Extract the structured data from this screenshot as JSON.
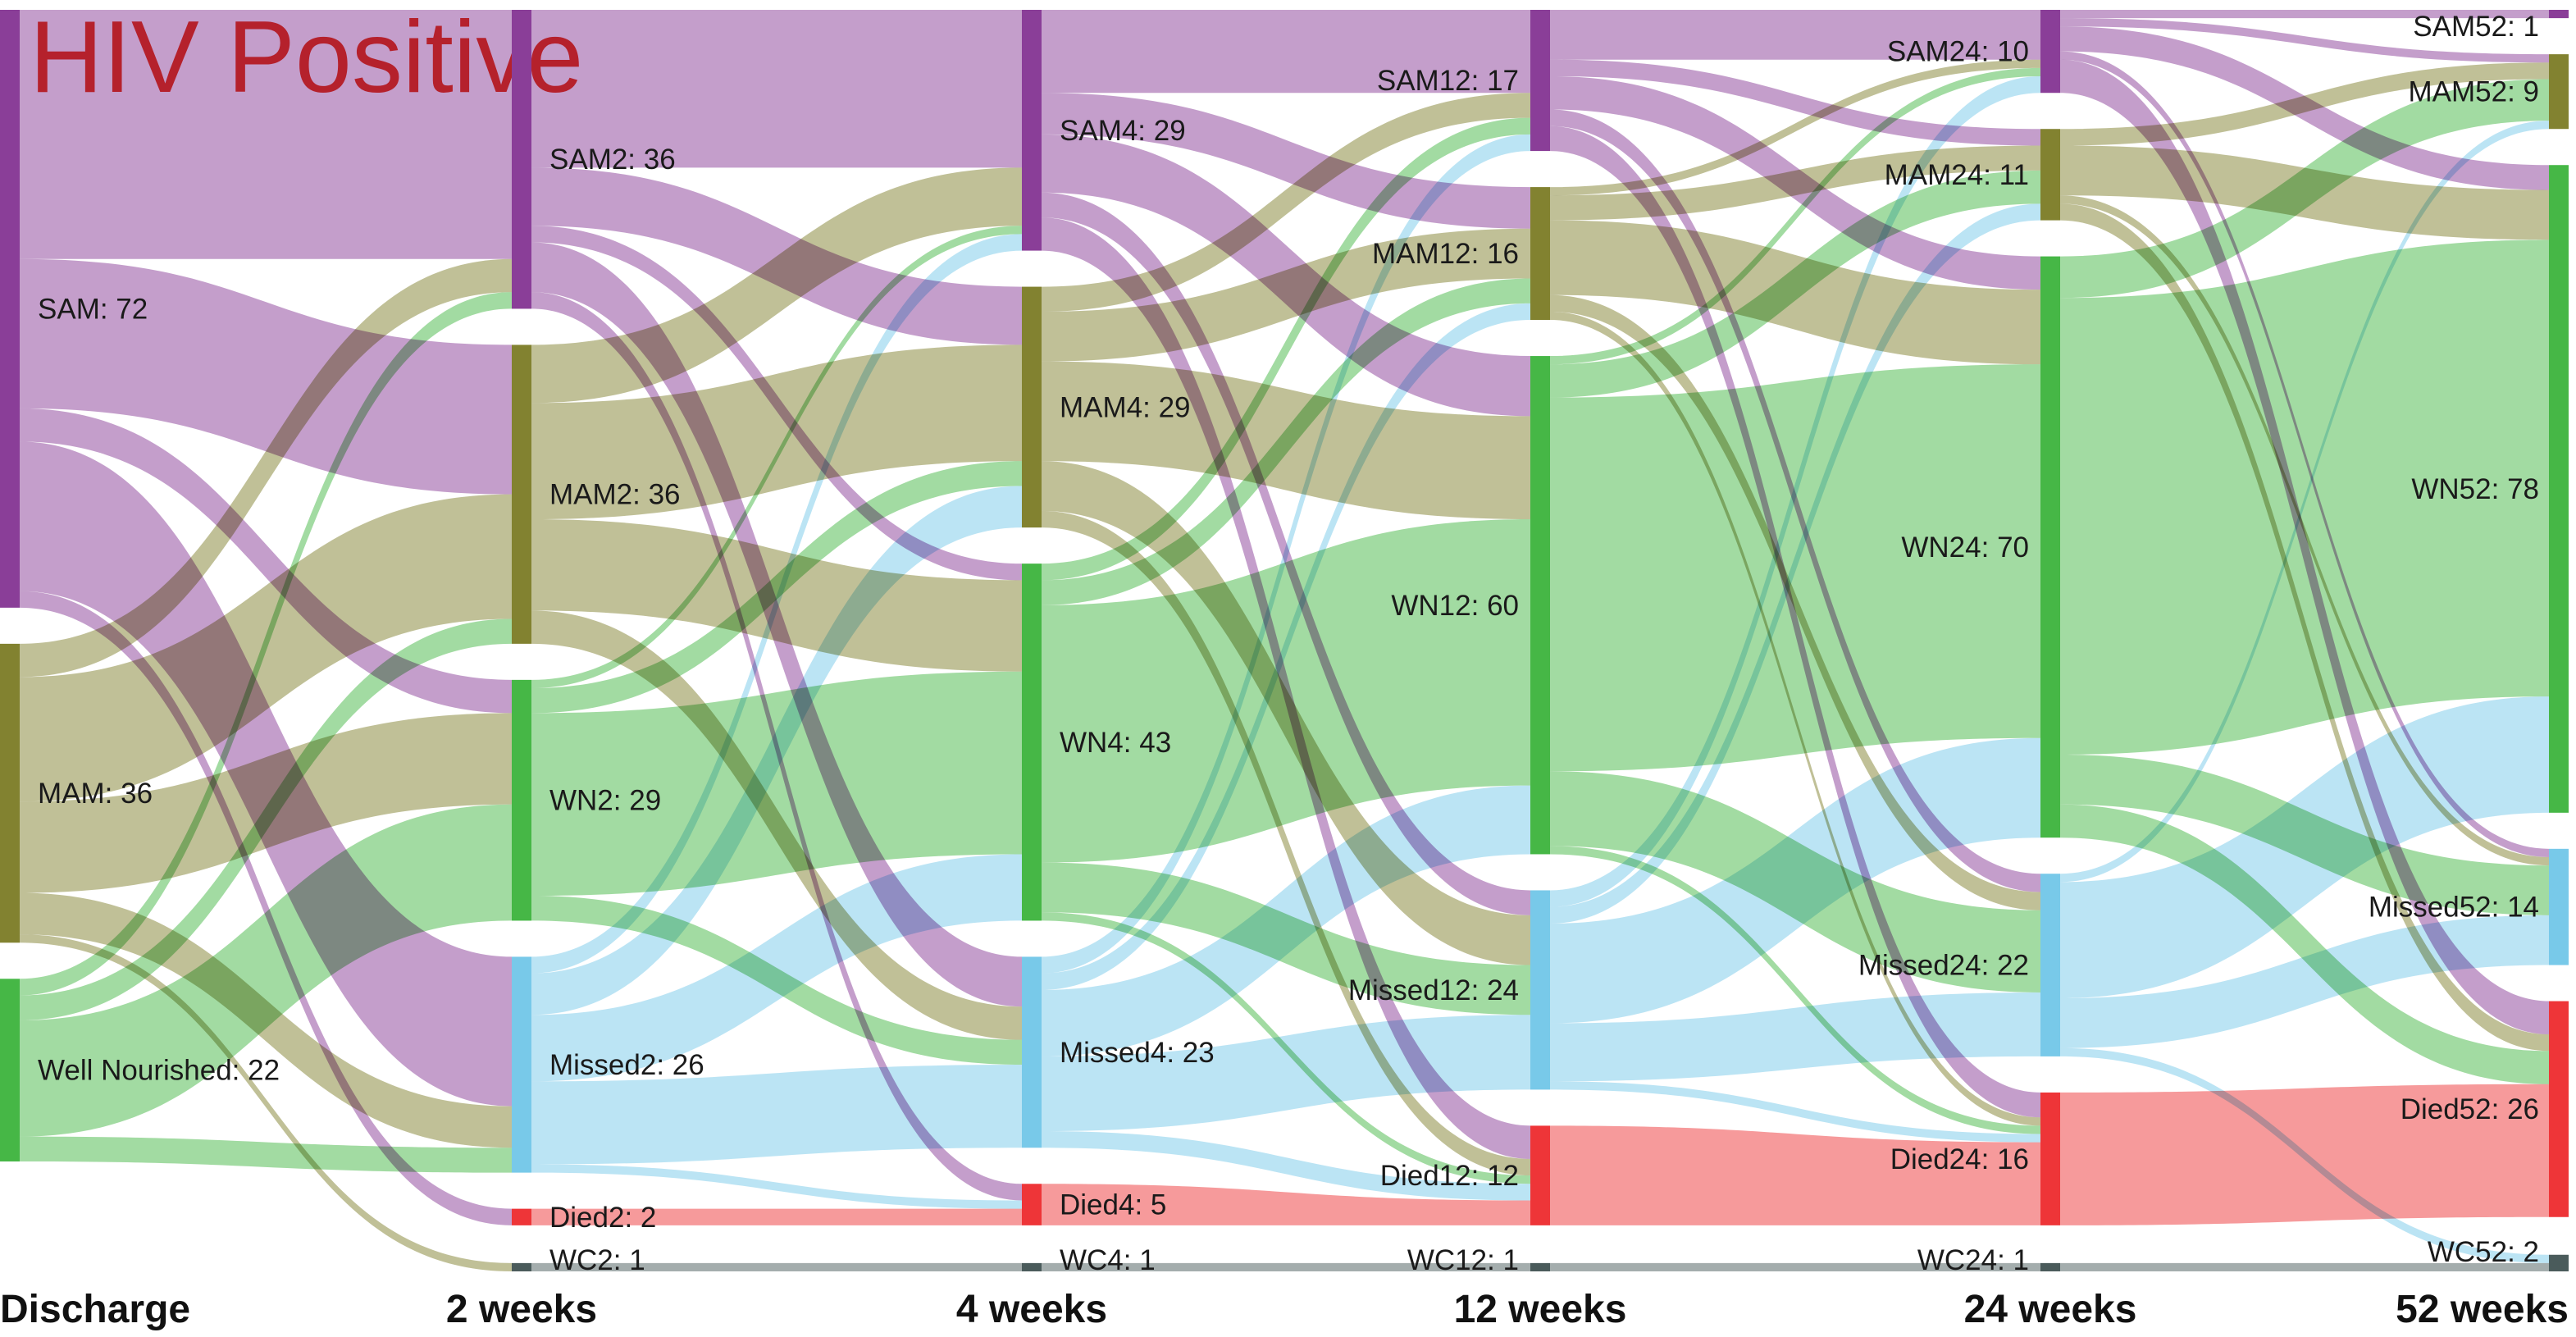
{
  "title": "HIV Positive",
  "colors": {
    "SAM": "#8a3e98",
    "MAM": "#828230",
    "WN": "#46b746",
    "Missed": "#78c9e9",
    "Died": "#ee3538",
    "WC": "#4a5b5b",
    "title": "#ec3437"
  },
  "columns": [
    {
      "label": "Discharge",
      "nodes": [
        {
          "id": "SAM0",
          "cat": "SAM",
          "label": "SAM: 72"
        },
        {
          "id": "MAM0",
          "cat": "MAM",
          "label": "MAM: 36"
        },
        {
          "id": "WN0",
          "cat": "WN",
          "label": "Well Nourished: 22"
        }
      ]
    },
    {
      "label": "2 weeks",
      "nodes": [
        {
          "id": "SAM2",
          "cat": "SAM",
          "label": "SAM2: 36"
        },
        {
          "id": "MAM2",
          "cat": "MAM",
          "label": "MAM2: 36"
        },
        {
          "id": "WN2",
          "cat": "WN",
          "label": "WN2: 29"
        },
        {
          "id": "Missed2",
          "cat": "Missed",
          "label": "Missed2: 26"
        },
        {
          "id": "Died2",
          "cat": "Died",
          "label": "Died2: 2"
        },
        {
          "id": "WC2",
          "cat": "WC",
          "label": "WC2: 1"
        }
      ]
    },
    {
      "label": "4 weeks",
      "nodes": [
        {
          "id": "SAM4",
          "cat": "SAM",
          "label": "SAM4: 29"
        },
        {
          "id": "MAM4",
          "cat": "MAM",
          "label": "MAM4: 29"
        },
        {
          "id": "WN4",
          "cat": "WN",
          "label": "WN4: 43"
        },
        {
          "id": "Missed4",
          "cat": "Missed",
          "label": "Missed4: 23"
        },
        {
          "id": "Died4",
          "cat": "Died",
          "label": "Died4: 5"
        },
        {
          "id": "WC4",
          "cat": "WC",
          "label": "WC4: 1"
        }
      ]
    },
    {
      "label": "12 weeks",
      "nodes": [
        {
          "id": "SAM12",
          "cat": "SAM",
          "label": "SAM12: 17"
        },
        {
          "id": "MAM12",
          "cat": "MAM",
          "label": "MAM12: 16"
        },
        {
          "id": "WN12",
          "cat": "WN",
          "label": "WN12: 60"
        },
        {
          "id": "Missed12",
          "cat": "Missed",
          "label": "Missed12: 24"
        },
        {
          "id": "Died12",
          "cat": "Died",
          "label": "Died12: 12"
        },
        {
          "id": "WC12",
          "cat": "WC",
          "label": "WC12: 1"
        }
      ]
    },
    {
      "label": "24 weeks",
      "nodes": [
        {
          "id": "SAM24",
          "cat": "SAM",
          "label": "SAM24: 10"
        },
        {
          "id": "MAM24",
          "cat": "MAM",
          "label": "MAM24: 11"
        },
        {
          "id": "WN24",
          "cat": "WN",
          "label": "WN24: 70"
        },
        {
          "id": "Missed24",
          "cat": "Missed",
          "label": "Missed24: 22"
        },
        {
          "id": "Died24",
          "cat": "Died",
          "label": "Died24: 16"
        },
        {
          "id": "WC24",
          "cat": "WC",
          "label": "WC24: 1"
        }
      ]
    },
    {
      "label": "52 weeks",
      "nodes": [
        {
          "id": "SAM52",
          "cat": "SAM",
          "label": "SAM52: 1"
        },
        {
          "id": "MAM52",
          "cat": "MAM",
          "label": "MAM52: 9"
        },
        {
          "id": "WN52",
          "cat": "WN",
          "label": "WN52: 78"
        },
        {
          "id": "Missed52",
          "cat": "Missed",
          "label": "Missed52: 14"
        },
        {
          "id": "Died52",
          "cat": "Died",
          "label": "Died52: 26"
        },
        {
          "id": "WC52",
          "cat": "WC",
          "label": "WC52: 2"
        }
      ]
    }
  ],
  "flows": [
    {
      "from": "SAM0",
      "to": "SAM2",
      "value": 30
    },
    {
      "from": "SAM0",
      "to": "MAM2",
      "value": 18
    },
    {
      "from": "SAM0",
      "to": "WN2",
      "value": 4
    },
    {
      "from": "SAM0",
      "to": "Missed2",
      "value": 18
    },
    {
      "from": "SAM0",
      "to": "Died2",
      "value": 2
    },
    {
      "from": "MAM0",
      "to": "SAM2",
      "value": 4
    },
    {
      "from": "MAM0",
      "to": "MAM2",
      "value": 15
    },
    {
      "from": "MAM0",
      "to": "WN2",
      "value": 11
    },
    {
      "from": "MAM0",
      "to": "Missed2",
      "value": 5
    },
    {
      "from": "MAM0",
      "to": "WC2",
      "value": 1
    },
    {
      "from": "WN0",
      "to": "SAM2",
      "value": 2
    },
    {
      "from": "WN0",
      "to": "MAM2",
      "value": 3
    },
    {
      "from": "WN0",
      "to": "WN2",
      "value": 14
    },
    {
      "from": "WN0",
      "to": "Missed2",
      "value": 3
    },
    {
      "from": "SAM2",
      "to": "SAM4",
      "value": 19
    },
    {
      "from": "SAM2",
      "to": "MAM4",
      "value": 7
    },
    {
      "from": "SAM2",
      "to": "WN4",
      "value": 2
    },
    {
      "from": "SAM2",
      "to": "Missed4",
      "value": 6
    },
    {
      "from": "SAM2",
      "to": "Died4",
      "value": 2
    },
    {
      "from": "MAM2",
      "to": "SAM4",
      "value": 7
    },
    {
      "from": "MAM2",
      "to": "MAM4",
      "value": 14
    },
    {
      "from": "MAM2",
      "to": "WN4",
      "value": 11
    },
    {
      "from": "MAM2",
      "to": "Missed4",
      "value": 4
    },
    {
      "from": "WN2",
      "to": "SAM4",
      "value": 1
    },
    {
      "from": "WN2",
      "to": "MAM4",
      "value": 3
    },
    {
      "from": "WN2",
      "to": "WN4",
      "value": 22
    },
    {
      "from": "WN2",
      "to": "Missed4",
      "value": 3
    },
    {
      "from": "Missed2",
      "to": "SAM4",
      "value": 2
    },
    {
      "from": "Missed2",
      "to": "MAM4",
      "value": 5
    },
    {
      "from": "Missed2",
      "to": "WN4",
      "value": 8
    },
    {
      "from": "Missed2",
      "to": "Missed4",
      "value": 10
    },
    {
      "from": "Missed2",
      "to": "Died4",
      "value": 1
    },
    {
      "from": "Died2",
      "to": "Died4",
      "value": 2
    },
    {
      "from": "WC2",
      "to": "WC4",
      "value": 1
    },
    {
      "from": "SAM4",
      "to": "SAM12",
      "value": 10
    },
    {
      "from": "SAM4",
      "to": "MAM12",
      "value": 5
    },
    {
      "from": "SAM4",
      "to": "WN12",
      "value": 7
    },
    {
      "from": "SAM4",
      "to": "Missed12",
      "value": 3
    },
    {
      "from": "SAM4",
      "to": "Died12",
      "value": 4
    },
    {
      "from": "MAM4",
      "to": "SAM12",
      "value": 3
    },
    {
      "from": "MAM4",
      "to": "MAM12",
      "value": 6
    },
    {
      "from": "MAM4",
      "to": "WN12",
      "value": 12
    },
    {
      "from": "MAM4",
      "to": "Missed12",
      "value": 6
    },
    {
      "from": "MAM4",
      "to": "Died12",
      "value": 2
    },
    {
      "from": "WN4",
      "to": "SAM12",
      "value": 2
    },
    {
      "from": "WN4",
      "to": "MAM12",
      "value": 3
    },
    {
      "from": "WN4",
      "to": "WN12",
      "value": 31
    },
    {
      "from": "WN4",
      "to": "Missed12",
      "value": 6
    },
    {
      "from": "WN4",
      "to": "Died12",
      "value": 1
    },
    {
      "from": "Missed4",
      "to": "SAM12",
      "value": 2
    },
    {
      "from": "Missed4",
      "to": "MAM12",
      "value": 2
    },
    {
      "from": "Missed4",
      "to": "WN12",
      "value": 8
    },
    {
      "from": "Missed4",
      "to": "Missed12",
      "value": 9
    },
    {
      "from": "Missed4",
      "to": "Died12",
      "value": 2
    },
    {
      "from": "Died4",
      "to": "Died12",
      "value": 3
    },
    {
      "from": "Died4",
      "to": "Died12",
      "value": 0
    },
    {
      "from": "WC4",
      "to": "WC12",
      "value": 1
    },
    {
      "from": "SAM12",
      "to": "SAM24",
      "value": 6
    },
    {
      "from": "SAM12",
      "to": "MAM24",
      "value": 2
    },
    {
      "from": "SAM12",
      "to": "WN24",
      "value": 4
    },
    {
      "from": "SAM12",
      "to": "Missed24",
      "value": 2
    },
    {
      "from": "SAM12",
      "to": "Died24",
      "value": 3
    },
    {
      "from": "MAM12",
      "to": "SAM24",
      "value": 1
    },
    {
      "from": "MAM12",
      "to": "MAM24",
      "value": 3
    },
    {
      "from": "MAM12",
      "to": "WN24",
      "value": 9
    },
    {
      "from": "MAM12",
      "to": "Missed24",
      "value": 2
    },
    {
      "from": "MAM12",
      "to": "Died24",
      "value": 1
    },
    {
      "from": "WN12",
      "to": "SAM24",
      "value": 1
    },
    {
      "from": "WN12",
      "to": "MAM24",
      "value": 4
    },
    {
      "from": "WN12",
      "to": "WN24",
      "value": 45
    },
    {
      "from": "WN12",
      "to": "Missed24",
      "value": 9
    },
    {
      "from": "WN12",
      "to": "Died24",
      "value": 1
    },
    {
      "from": "Missed12",
      "to": "SAM24",
      "value": 2
    },
    {
      "from": "Missed12",
      "to": "MAM24",
      "value": 2
    },
    {
      "from": "Missed12",
      "to": "WN24",
      "value": 12
    },
    {
      "from": "Missed12",
      "to": "Missed24",
      "value": 7
    },
    {
      "from": "Missed12",
      "to": "Died24",
      "value": 1
    },
    {
      "from": "Died12",
      "to": "Died24",
      "value": 10
    },
    {
      "from": "Missed12",
      "to": "Died24",
      "value": 0
    },
    {
      "from": "WC12",
      "to": "WC24",
      "value": 1
    },
    {
      "from": "SAM24",
      "to": "SAM52",
      "value": 1
    },
    {
      "from": "SAM24",
      "to": "MAM52",
      "value": 1
    },
    {
      "from": "SAM24",
      "to": "WN52",
      "value": 3
    },
    {
      "from": "SAM24",
      "to": "Missed52",
      "value": 1
    },
    {
      "from": "SAM24",
      "to": "Died52",
      "value": 4
    },
    {
      "from": "MAM24",
      "to": "MAM52",
      "value": 2
    },
    {
      "from": "MAM24",
      "to": "WN52",
      "value": 6
    },
    {
      "from": "MAM24",
      "to": "Missed52",
      "value": 1
    },
    {
      "from": "MAM24",
      "to": "Died52",
      "value": 2
    },
    {
      "from": "WN24",
      "to": "MAM52",
      "value": 5
    },
    {
      "from": "WN24",
      "to": "WN52",
      "value": 55
    },
    {
      "from": "WN24",
      "to": "Missed52",
      "value": 6
    },
    {
      "from": "WN24",
      "to": "Died52",
      "value": 4
    },
    {
      "from": "Missed24",
      "to": "MAM52",
      "value": 1
    },
    {
      "from": "Missed24",
      "to": "WN52",
      "value": 14
    },
    {
      "from": "Missed24",
      "to": "Missed52",
      "value": 6
    },
    {
      "from": "Missed24",
      "to": "WC52",
      "value": 1
    },
    {
      "from": "Died24",
      "to": "Died52",
      "value": 16
    },
    {
      "from": "WC24",
      "to": "WC52",
      "value": 1
    }
  ]
}
